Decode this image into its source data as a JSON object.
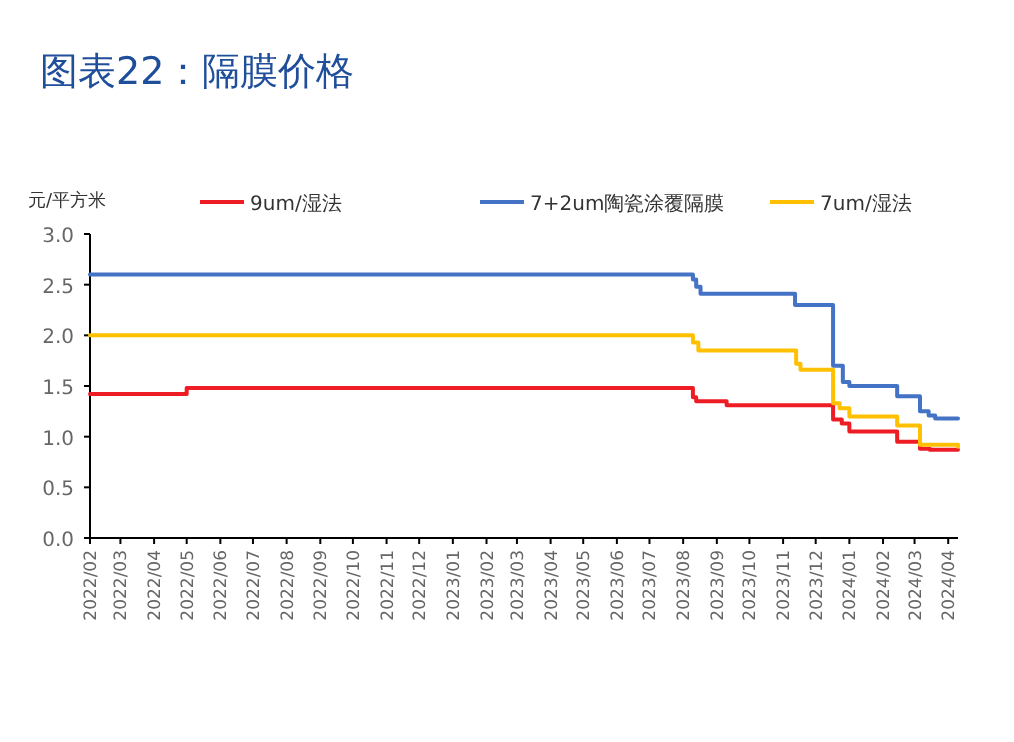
{
  "chart_data": {
    "type": "step",
    "title": "图表22：隔膜价格",
    "ylabel": "元/平方米",
    "legend": "top",
    "marker": "none",
    "line_style": "solid",
    "grid": false,
    "xlim": [
      "2022-02-01",
      "2024-04-10"
    ],
    "xticks": [
      {
        "value": "2022-02",
        "label": "2022/02"
      },
      {
        "value": "2022-03",
        "label": "2022/03"
      },
      {
        "value": "2022-04",
        "label": "2022/04"
      },
      {
        "value": "2022-05",
        "label": "2022/05"
      },
      {
        "value": "2022-06",
        "label": "2022/06"
      },
      {
        "value": "2022-07",
        "label": "2022/07"
      },
      {
        "value": "2022-08",
        "label": "2022/08"
      },
      {
        "value": "2022-09",
        "label": "2022/09"
      },
      {
        "value": "2022-10",
        "label": "2022/10"
      },
      {
        "value": "2022-11",
        "label": "2022/11"
      },
      {
        "value": "2022-12",
        "label": "2022/12"
      },
      {
        "value": "2023-01",
        "label": "2023/01"
      },
      {
        "value": "2023-02",
        "label": "2023/02"
      },
      {
        "value": "2023-03",
        "label": "2023/03"
      },
      {
        "value": "2023-04",
        "label": "2023/04"
      },
      {
        "value": "2023-05",
        "label": "2023/05"
      },
      {
        "value": "2023-06",
        "label": "2023/06"
      },
      {
        "value": "2023-07",
        "label": "2023/07"
      },
      {
        "value": "2023-08",
        "label": "2023/08"
      },
      {
        "value": "2023-09",
        "label": "2023/09"
      },
      {
        "value": "2023-10",
        "label": "2023/10"
      },
      {
        "value": "2023-11",
        "label": "2023/11"
      },
      {
        "value": "2023-12",
        "label": "2023/12"
      },
      {
        "value": "2024-01",
        "label": "2024/01"
      },
      {
        "value": "2024-02",
        "label": "2024/02"
      },
      {
        "value": "2024-03",
        "label": "2024/03"
      },
      {
        "value": "2024-04",
        "label": "2024/04"
      }
    ],
    "ylim": [
      0,
      3
    ],
    "yticks": [
      {
        "value": 0,
        "label": "0.0"
      },
      {
        "value": 0.5,
        "label": "0.5"
      },
      {
        "value": 1,
        "label": "1.0"
      },
      {
        "value": 1.5,
        "label": "1.5"
      },
      {
        "value": 2,
        "label": "2.0"
      },
      {
        "value": 2.5,
        "label": "2.5"
      },
      {
        "value": 3,
        "label": "3.0"
      }
    ],
    "series": [
      {
        "name": "9um/湿法",
        "color": "#ee1c25",
        "x": [
          "2022-02-01",
          "2022-05-01",
          "2023-08-10",
          "2023-08-13",
          "2023-08-20",
          "2023-09-10",
          "2023-12-17",
          "2023-12-25",
          "2024-01-01",
          "2024-02-14",
          "2024-03-06",
          "2024-03-15",
          "2024-04-10"
        ],
        "values": [
          1.42,
          1.48,
          1.39,
          1.35,
          1.35,
          1.31,
          1.17,
          1.13,
          1.05,
          0.95,
          0.88,
          0.87,
          0.87
        ]
      },
      {
        "name": "7+2um陶瓷涂覆隔膜",
        "color": "#4472c4",
        "x": [
          "2022-02-01",
          "2023-08-10",
          "2023-08-13",
          "2023-08-17",
          "2023-11-12",
          "2023-12-17",
          "2023-12-26",
          "2024-01-01",
          "2024-02-14",
          "2024-03-06",
          "2024-03-14",
          "2024-03-20",
          "2024-04-10"
        ],
        "values": [
          2.6,
          2.55,
          2.48,
          2.41,
          2.3,
          1.7,
          1.54,
          1.5,
          1.4,
          1.25,
          1.21,
          1.18,
          1.18
        ]
      },
      {
        "name": "7um/湿法",
        "color": "#ffc000",
        "x": [
          "2022-02-01",
          "2023-08-10",
          "2023-08-15",
          "2023-11-13",
          "2023-11-17",
          "2023-12-17",
          "2023-12-23",
          "2024-01-01",
          "2024-02-14",
          "2024-03-06",
          "2024-04-10"
        ],
        "values": [
          2.0,
          1.93,
          1.85,
          1.72,
          1.66,
          1.33,
          1.28,
          1.2,
          1.11,
          0.92,
          0.9
        ]
      }
    ]
  }
}
